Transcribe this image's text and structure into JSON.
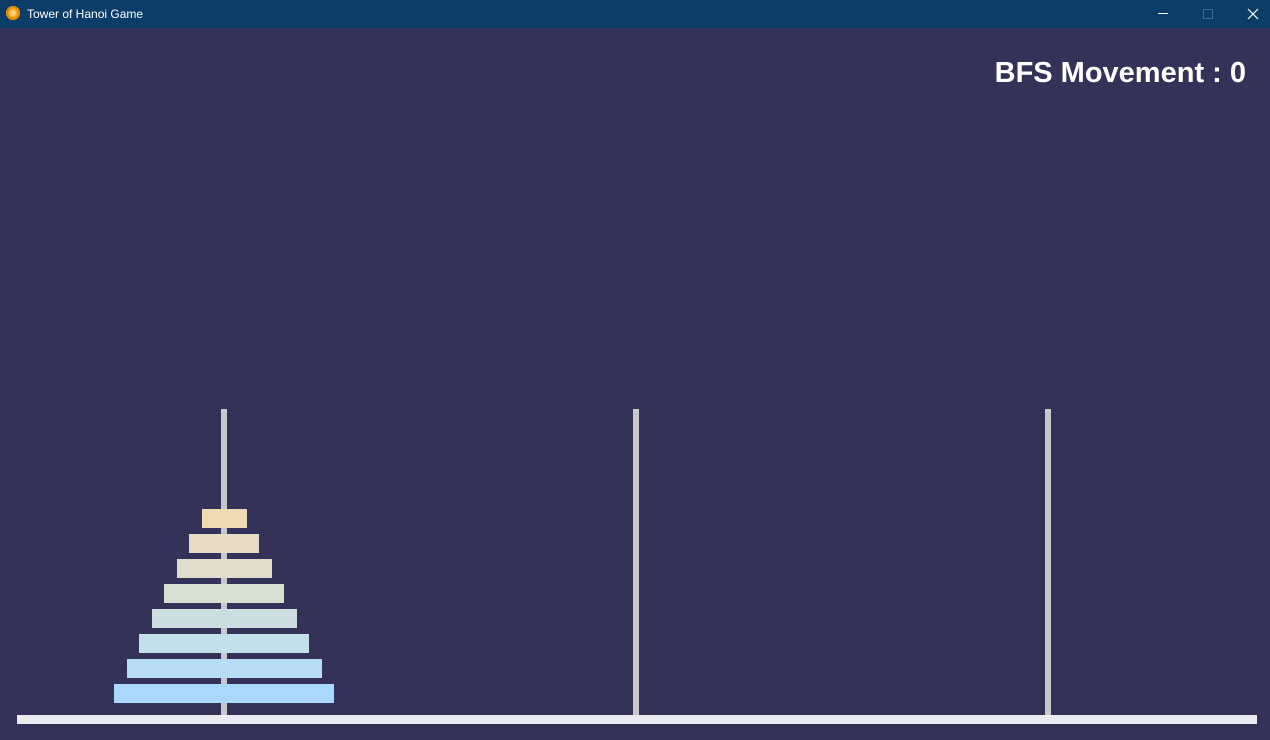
{
  "window": {
    "title": "Tower of Hanoi Game",
    "icon": "app-icon",
    "controls": [
      "minimize-icon",
      "maximize-icon",
      "close-icon"
    ]
  },
  "game": {
    "score_text": "BFS Movement : 0",
    "moves": 0,
    "pegs": 3,
    "disk_count": 8,
    "disks_on_peg": [
      [
        1,
        2,
        3,
        4,
        5,
        6,
        7,
        8
      ],
      [],
      []
    ],
    "colors": {
      "background": "#343258",
      "titlebar": "#0b3d68",
      "base": "#ececf0",
      "peg": "#c8c8cc",
      "disks": [
        "#f0dab5",
        "#e6dcc3",
        "#dfdccb",
        "#d7dfd3",
        "#ccdedf",
        "#c2dfea",
        "#b7dcf4",
        "#a9d8fc"
      ]
    }
  }
}
